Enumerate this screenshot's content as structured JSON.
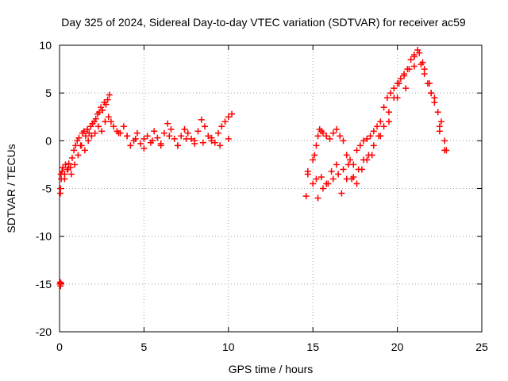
{
  "chart_data": {
    "type": "scatter",
    "title": "Day 325 of 2024, Sidereal Day-to-day VTEC variation (SDTVAR) for receiver ac59",
    "xlabel": "GPS time / hours",
    "ylabel": "SDTVAR / TECUs",
    "xlim": [
      0,
      25
    ],
    "ylim": [
      -20,
      10
    ],
    "xticks": [
      0,
      5,
      10,
      15,
      20,
      25
    ],
    "xtick_labels": [
      "0",
      "5",
      "10",
      "15",
      "20",
      "25"
    ],
    "yticks": [
      -20,
      -15,
      -10,
      -5,
      0,
      5,
      10
    ],
    "ytick_labels": [
      "-20",
      "-15",
      "-10",
      "-5",
      "0",
      "5",
      "10"
    ],
    "grid": true,
    "marker": "+",
    "marker_color": "#ff0000",
    "series": [
      {
        "name": "SDTVAR",
        "x": [
          0.02,
          0.04,
          0.06,
          0.08,
          0.05,
          0.1,
          0.15,
          0.2,
          0.3,
          0.35,
          0.45,
          0.55,
          0.65,
          0.75,
          0.85,
          0.95,
          1.05,
          1.15,
          1.25,
          1.35,
          1.45,
          1.55,
          1.65,
          1.75,
          1.85,
          1.95,
          2.05,
          2.15,
          2.25,
          2.35,
          2.45,
          2.55,
          2.65,
          2.75,
          2.85,
          2.95,
          3.05,
          3.2,
          3.4,
          3.6,
          3.8,
          4.0,
          4.2,
          4.4,
          4.6,
          4.8,
          5.0,
          5.2,
          5.4,
          5.6,
          5.8,
          6.0,
          6.2,
          6.4,
          6.6,
          6.8,
          7.0,
          7.2,
          7.4,
          7.6,
          7.8,
          8.0,
          8.2,
          8.4,
          8.6,
          8.8,
          9.0,
          9.2,
          9.4,
          9.6,
          9.8,
          10.0,
          10.2,
          0.05,
          0.08,
          0.3,
          0.5,
          0.7,
          0.9,
          1.1,
          1.3,
          1.5,
          1.7,
          1.9,
          2.1,
          2.3,
          2.5,
          2.7,
          2.9,
          3.5,
          4.0,
          4.5,
          5.0,
          5.5,
          6.0,
          6.5,
          7.0,
          7.5,
          8.0,
          8.5,
          9.0,
          9.5,
          10.0,
          14.6,
          14.7,
          15.0,
          15.1,
          15.2,
          15.3,
          15.4,
          15.5,
          15.6,
          15.8,
          16.0,
          16.2,
          16.4,
          16.6,
          16.8,
          17.0,
          17.2,
          17.4,
          17.6,
          17.8,
          18.0,
          18.2,
          18.4,
          18.6,
          18.8,
          19.0,
          19.2,
          19.4,
          19.6,
          19.8,
          20.0,
          20.2,
          20.4,
          20.6,
          20.8,
          21.0,
          21.2,
          21.4,
          21.6,
          21.8,
          22.0,
          22.2,
          22.4,
          22.6,
          22.8,
          14.7,
          15.0,
          15.3,
          15.6,
          15.9,
          16.2,
          16.5,
          16.8,
          17.1,
          17.4,
          17.7,
          18.0,
          18.3,
          18.6,
          18.9,
          19.2,
          19.5,
          19.8,
          20.1,
          20.4,
          20.7,
          21.0,
          21.3,
          21.6,
          21.9,
          22.2,
          22.5,
          22.8,
          15.2,
          15.5,
          15.8,
          16.1,
          16.4,
          16.7,
          17.0,
          17.3,
          17.6,
          17.9,
          18.2,
          18.5,
          19.0,
          19.5,
          20.0,
          20.5,
          21.0,
          21.5,
          22.0,
          22.5,
          22.9
        ],
        "y": [
          -15.0,
          -14.8,
          -15.2,
          -14.9,
          -5.0,
          -4.0,
          -3.2,
          -2.8,
          -3.5,
          -2.5,
          -3.0,
          -2.4,
          -2.8,
          -1.8,
          -1.0,
          -0.5,
          0.0,
          0.3,
          -0.5,
          0.8,
          1.0,
          0.5,
          1.2,
          0.8,
          1.5,
          1.8,
          2.0,
          2.3,
          2.8,
          3.0,
          3.5,
          3.2,
          4.0,
          3.8,
          4.3,
          4.8,
          2.0,
          1.5,
          1.0,
          0.8,
          1.5,
          0.5,
          -0.5,
          0.0,
          0.8,
          -0.3,
          0.2,
          0.5,
          -0.2,
          1.0,
          0.3,
          -0.5,
          0.8,
          1.8,
          1.2,
          0.2,
          -0.5,
          0.5,
          1.2,
          0.8,
          0.2,
          -0.3,
          1.0,
          2.2,
          1.5,
          0.5,
          0.0,
          -0.2,
          0.8,
          1.5,
          2.0,
          2.5,
          2.8,
          -5.5,
          -3.5,
          -4.0,
          -3.0,
          -3.5,
          -2.5,
          -1.5,
          -0.5,
          -1.0,
          0.0,
          0.5,
          0.8,
          1.5,
          1.0,
          2.0,
          2.5,
          0.8,
          0.5,
          0.2,
          -0.8,
          0.0,
          -0.3,
          0.5,
          -0.5,
          0.2,
          0.0,
          -0.2,
          0.3,
          -0.5,
          0.2,
          -5.8,
          -3.2,
          -2.0,
          -1.5,
          -0.5,
          0.5,
          1.2,
          1.0,
          0.8,
          0.5,
          0.2,
          0.8,
          1.2,
          0.5,
          0.0,
          -1.5,
          -2.0,
          -2.5,
          -1.0,
          -0.5,
          0.0,
          0.2,
          0.5,
          1.0,
          1.5,
          2.0,
          3.5,
          4.5,
          5.0,
          5.5,
          6.0,
          6.5,
          7.0,
          7.5,
          8.5,
          9.0,
          9.5,
          8.0,
          7.0,
          6.0,
          5.0,
          4.5,
          3.0,
          2.0,
          0.0,
          -3.5,
          -4.5,
          -6.0,
          -5.0,
          -4.5,
          -4.0,
          -3.5,
          -3.0,
          -2.5,
          -3.8,
          -3.0,
          -2.0,
          -1.5,
          -0.5,
          0.5,
          1.5,
          3.0,
          4.5,
          6.0,
          6.8,
          7.5,
          8.8,
          9.2,
          7.5,
          6.0,
          4.0,
          1.5,
          -1.0,
          -4.0,
          -3.8,
          -4.5,
          -3.2,
          -2.5,
          -5.5,
          -4.0,
          -4.0,
          -4.5,
          -3.0,
          -2.0,
          -1.5,
          0.5,
          2.0,
          4.5,
          5.5,
          7.8,
          8.2,
          5.0,
          1.0,
          -1.0
        ]
      }
    ]
  }
}
